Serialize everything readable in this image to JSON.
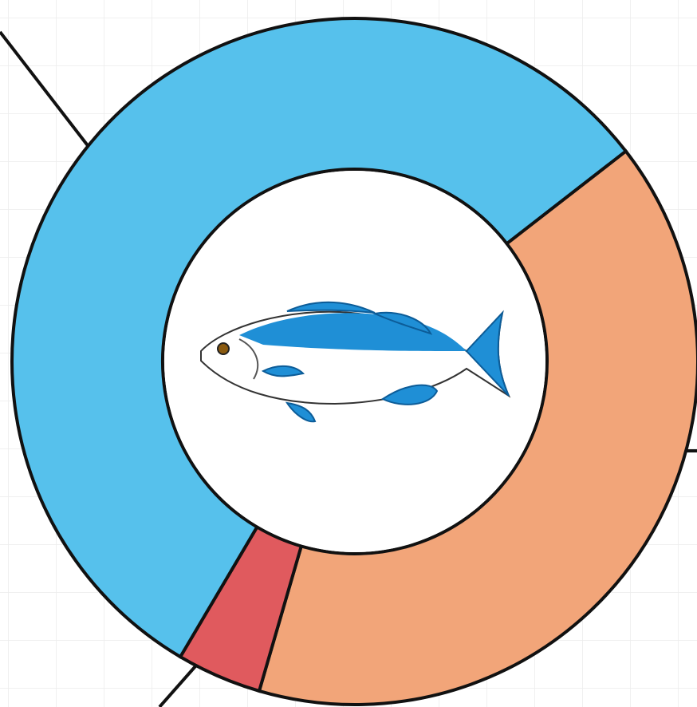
{
  "chart_data": {
    "type": "donut",
    "values": [
      40,
      4,
      56
    ],
    "colors": [
      "#f2a579",
      "#e05a5e",
      "#56c1ec"
    ]
  }
}
